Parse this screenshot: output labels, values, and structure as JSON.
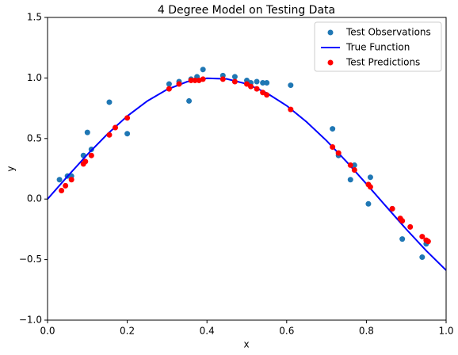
{
  "chart_data": {
    "type": "scatter",
    "title": "4 Degree Model on Testing Data",
    "x_label": "x",
    "y_label": "y",
    "xlim": [
      0,
      1
    ],
    "ylim": [
      -1,
      1.5
    ],
    "xticks": [
      {
        "value": 0,
        "label": "0.0"
      },
      {
        "value": 0.2,
        "label": "0.2"
      },
      {
        "value": 0.4,
        "label": "0.4"
      },
      {
        "value": 0.6,
        "label": "0.6"
      },
      {
        "value": 0.8,
        "label": "0.8"
      },
      {
        "value": 1,
        "label": "1.0"
      }
    ],
    "yticks": [
      {
        "value": -1,
        "label": "−1.0"
      },
      {
        "value": -0.5,
        "label": "−0.5"
      },
      {
        "value": 0,
        "label": "0.0"
      },
      {
        "value": 0.5,
        "label": "0.5"
      },
      {
        "value": 1,
        "label": "1.0"
      },
      {
        "value": 1.5,
        "label": "1.5"
      }
    ],
    "legend": "upper right",
    "series": [
      {
        "name": "Test Observations",
        "type": "scatter",
        "color": "#1f77b4",
        "x": [
          0.03,
          0.05,
          0.06,
          0.09,
          0.1,
          0.11,
          0.155,
          0.2,
          0.305,
          0.33,
          0.355,
          0.36,
          0.375,
          0.39,
          0.44,
          0.47,
          0.5,
          0.51,
          0.525,
          0.54,
          0.55,
          0.61,
          0.715,
          0.73,
          0.76,
          0.77,
          0.805,
          0.81,
          0.865,
          0.89,
          0.94,
          0.95
        ],
        "values": [
          0.16,
          0.19,
          0.19,
          0.36,
          0.55,
          0.41,
          0.8,
          0.54,
          0.95,
          0.97,
          0.81,
          0.99,
          1.01,
          1.07,
          1.02,
          1.01,
          0.98,
          0.96,
          0.97,
          0.96,
          0.96,
          0.94,
          0.58,
          0.36,
          0.16,
          0.28,
          -0.04,
          0.18,
          -0.08,
          -0.33,
          -0.48,
          -0.37
        ]
      },
      {
        "name": "True Function",
        "type": "line",
        "color": "#0000ff",
        "x": [
          0,
          0.05,
          0.1,
          0.15,
          0.2,
          0.25,
          0.3,
          0.35,
          0.4,
          0.45,
          0.5,
          0.55,
          0.6,
          0.65,
          0.7,
          0.75,
          0.8,
          0.85,
          0.9,
          0.95,
          1
        ],
        "values": [
          0,
          0.187,
          0.368,
          0.536,
          0.685,
          0.809,
          0.905,
          0.969,
          0.998,
          0.992,
          0.951,
          0.876,
          0.771,
          0.637,
          0.482,
          0.309,
          0.125,
          -0.063,
          -0.249,
          -0.426,
          -0.588
        ]
      },
      {
        "name": "Test Predictions",
        "type": "scatter",
        "color": "#ff0000",
        "x": [
          0.035,
          0.045,
          0.06,
          0.09,
          0.095,
          0.11,
          0.155,
          0.17,
          0.2,
          0.305,
          0.33,
          0.36,
          0.37,
          0.38,
          0.39,
          0.44,
          0.47,
          0.5,
          0.51,
          0.525,
          0.54,
          0.55,
          0.61,
          0.715,
          0.73,
          0.76,
          0.77,
          0.805,
          0.81,
          0.865,
          0.885,
          0.89,
          0.91,
          0.94,
          0.95,
          0.955
        ],
        "values": [
          0.07,
          0.11,
          0.16,
          0.29,
          0.31,
          0.36,
          0.53,
          0.59,
          0.67,
          0.91,
          0.95,
          0.98,
          0.98,
          0.98,
          0.99,
          0.99,
          0.97,
          0.95,
          0.93,
          0.91,
          0.88,
          0.86,
          0.74,
          0.43,
          0.38,
          0.28,
          0.24,
          0.12,
          0.1,
          -0.08,
          -0.16,
          -0.18,
          -0.23,
          -0.31,
          -0.34,
          -0.35
        ]
      }
    ]
  }
}
